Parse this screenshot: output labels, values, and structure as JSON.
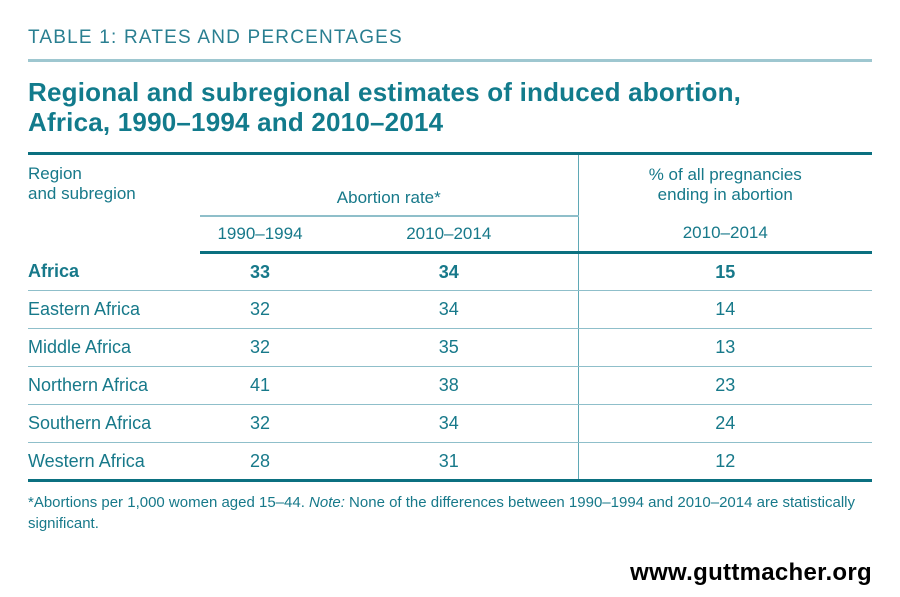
{
  "page": {
    "kicker": "TABLE 1: RATES AND PERCENTAGES",
    "title_line1": "Regional and subregional estimates of induced abortion,",
    "title_line2": "Africa, 1990–1994 and 2010–2014",
    "website": "www.guttmacher.org"
  },
  "colors": {
    "teal_text": "#17798a",
    "teal_dark_rule": "#0b7080",
    "teal_light_rule": "#8fbfca",
    "teal_kicker_rule": "#9ec7d0",
    "website_text": "#000000"
  },
  "chart_data": {
    "type": "table",
    "title": "Regional and subregional estimates of induced abortion, Africa, 1990–1994 and 2010–2014",
    "columns": [
      "Region and subregion",
      "Abortion rate* 1990–1994",
      "Abortion rate* 2010–2014",
      "% of all pregnancies ending in abortion 2010–2014"
    ],
    "rows": [
      [
        "Africa",
        33,
        34,
        15
      ],
      [
        "Eastern Africa",
        32,
        34,
        14
      ],
      [
        "Middle Africa",
        32,
        35,
        13
      ],
      [
        "Northern Africa",
        41,
        38,
        23
      ],
      [
        "Southern Africa",
        32,
        34,
        24
      ],
      [
        "Western Africa",
        28,
        31,
        12
      ]
    ]
  },
  "table": {
    "col1_header_line1": "Region",
    "col1_header_line2": "and subregion",
    "group_header": "Abortion rate*",
    "col4_header_line1": "% of all pregnancies",
    "col4_header_line2": "ending in abortion",
    "subheaders": [
      "1990–1994",
      "2010–2014",
      "2010–2014"
    ],
    "rows": [
      {
        "region": "Africa",
        "rate_1990_1994": "33",
        "rate_2010_2014": "34",
        "pct_2010_2014": "15"
      },
      {
        "region": "Eastern Africa",
        "rate_1990_1994": "32",
        "rate_2010_2014": "34",
        "pct_2010_2014": "14"
      },
      {
        "region": "Middle Africa",
        "rate_1990_1994": "32",
        "rate_2010_2014": "35",
        "pct_2010_2014": "13"
      },
      {
        "region": "Northern Africa",
        "rate_1990_1994": "41",
        "rate_2010_2014": "38",
        "pct_2010_2014": "23"
      },
      {
        "region": "Southern Africa",
        "rate_1990_1994": "32",
        "rate_2010_2014": "34",
        "pct_2010_2014": "24"
      },
      {
        "region": "Western Africa",
        "rate_1990_1994": "28",
        "rate_2010_2014": "31",
        "pct_2010_2014": "12"
      }
    ]
  },
  "footnote": {
    "part1": "*Abortions per 1,000 women aged 15–44. ",
    "note_label": "Note:",
    "part2": " None of the differences between 1990–1994 and 2010–2014 are statistically significant."
  }
}
